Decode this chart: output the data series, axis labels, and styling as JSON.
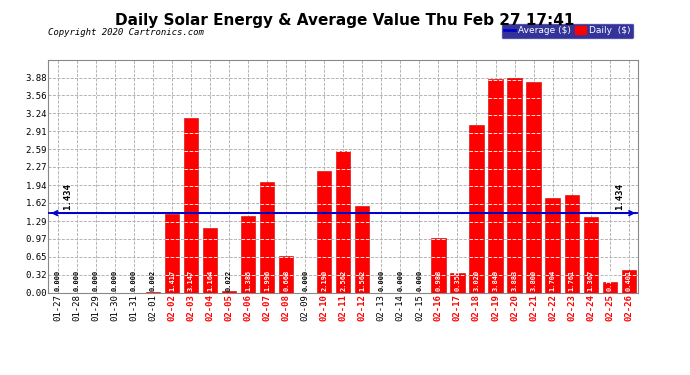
{
  "title": "Daily Solar Energy & Average Value Thu Feb 27 17:41",
  "copyright": "Copyright 2020 Cartronics.com",
  "average_value": 1.434,
  "categories": [
    "01-27",
    "01-28",
    "01-29",
    "01-30",
    "01-31",
    "02-01",
    "02-02",
    "02-03",
    "02-04",
    "02-05",
    "02-06",
    "02-07",
    "02-08",
    "02-09",
    "02-10",
    "02-11",
    "02-12",
    "02-13",
    "02-14",
    "02-15",
    "02-16",
    "02-17",
    "02-18",
    "02-19",
    "02-20",
    "02-21",
    "02-22",
    "02-23",
    "02-24",
    "02-25",
    "02-26"
  ],
  "values": [
    0.0,
    0.0,
    0.0,
    0.0,
    0.0,
    0.002,
    1.417,
    3.147,
    1.164,
    0.022,
    1.385,
    1.996,
    0.668,
    0.0,
    2.19,
    2.562,
    1.562,
    0.0,
    0.0,
    0.0,
    0.988,
    0.355,
    3.02,
    3.849,
    3.883,
    3.8,
    1.704,
    1.761,
    1.367,
    0.191,
    0.401
  ],
  "bar_color": "#ff0000",
  "bar_edge_color": "#cc0000",
  "avg_line_color": "#0000cc",
  "bg_color": "#ffffff",
  "plot_bg_color": "#ffffff",
  "grid_color": "#aaaaaa",
  "ylim": [
    0.0,
    4.2
  ],
  "yticks": [
    0.0,
    0.32,
    0.65,
    0.97,
    1.29,
    1.62,
    1.94,
    2.27,
    2.59,
    2.91,
    3.24,
    3.56,
    3.88
  ],
  "title_fontsize": 11,
  "tick_fontsize": 6.5,
  "value_fontsize": 5.0,
  "label_fontsize": 6.5,
  "avg_label": "1.434",
  "legend_avg_color": "#0000cc",
  "legend_daily_color": "#ff0000",
  "legend_bg_color": "#000080"
}
